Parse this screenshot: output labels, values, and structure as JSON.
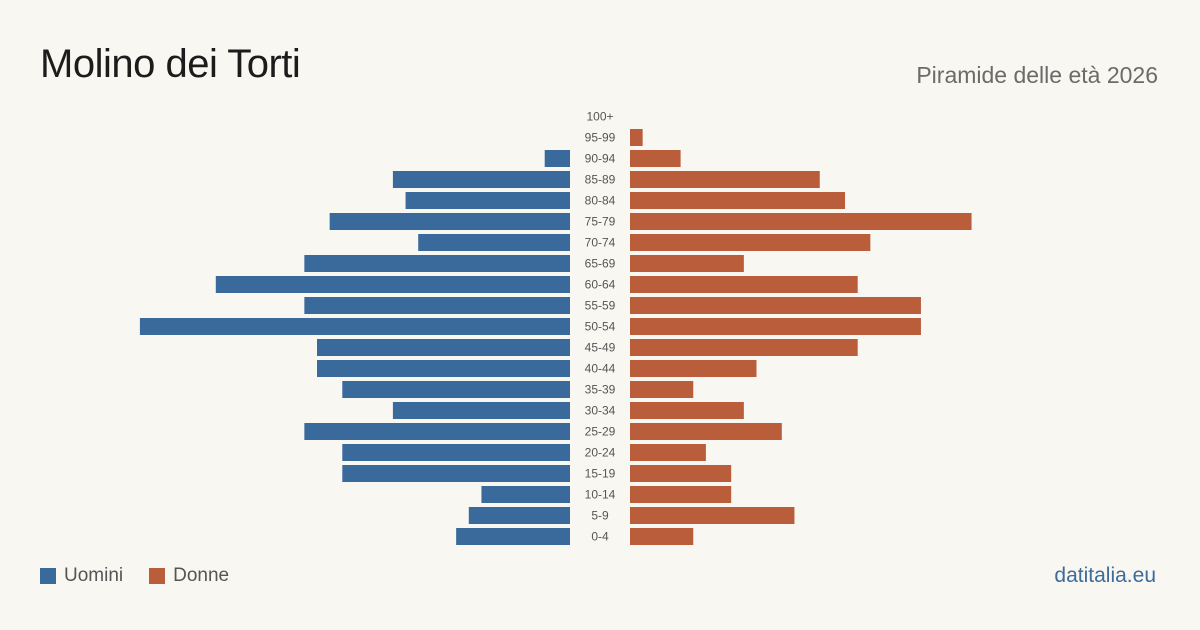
{
  "header": {
    "title": "Molino dei Torti",
    "subtitle": "Piramide delle età 2026"
  },
  "legend": {
    "men_label": "Uomini",
    "women_label": "Donne"
  },
  "source": "datitalia.eu",
  "colors": {
    "men": "#3a6a9c",
    "women": "#b95d3b",
    "background": "#f9f7f2",
    "label": "#555555"
  },
  "chart_data": {
    "type": "bar",
    "orientation": "horizontal-population-pyramid",
    "categories": [
      "100+",
      "95-99",
      "90-94",
      "85-89",
      "80-84",
      "75-79",
      "70-74",
      "65-69",
      "60-64",
      "55-59",
      "50-54",
      "45-49",
      "40-44",
      "35-39",
      "30-34",
      "25-29",
      "20-24",
      "15-19",
      "10-14",
      "5-9",
      "0-4"
    ],
    "series": [
      {
        "name": "Uomini",
        "side": "left",
        "values": [
          0,
          0,
          2,
          14,
          13,
          19,
          12,
          21,
          28,
          21,
          34,
          20,
          20,
          18,
          14,
          21,
          18,
          18,
          7,
          8,
          9
        ]
      },
      {
        "name": "Donne",
        "side": "right",
        "values": [
          0,
          1,
          4,
          15,
          17,
          27,
          19,
          9,
          18,
          23,
          23,
          18,
          10,
          5,
          9,
          12,
          6,
          8,
          8,
          13,
          5
        ]
      }
    ],
    "legend_position": "bottom-left",
    "grid": false
  }
}
